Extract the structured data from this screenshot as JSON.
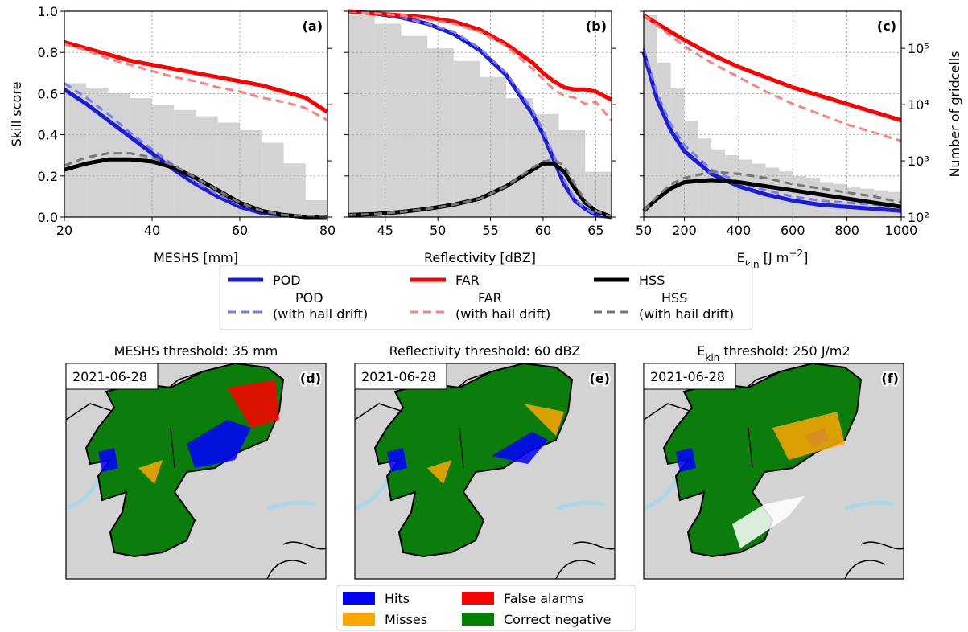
{
  "chart_data": [
    {
      "type": "line",
      "panel": "(a)",
      "ylabel": "Skill score",
      "xlabel": "MESHS [mm]",
      "xlim": [
        20,
        80
      ],
      "xticks": [
        20,
        40,
        60,
        80
      ],
      "ylim": [
        0,
        1
      ],
      "yticks": [
        {
          "value": 0,
          "label": "0.0"
        },
        {
          "value": 0.2,
          "label": "0.2"
        },
        {
          "value": 0.4,
          "label": "0.4"
        },
        {
          "value": 0.6,
          "label": "0.6"
        },
        {
          "value": 0.8,
          "label": "0.8"
        },
        {
          "value": 1,
          "label": "1.0"
        }
      ],
      "y2lim": [
        100,
        457000
      ],
      "y2log": true,
      "y2ticks": [
        100,
        1000,
        10000,
        100000
      ],
      "grid": true,
      "hist": {
        "color": "#d3d3d3",
        "bins": [
          20,
          25,
          30,
          35,
          40,
          45,
          50,
          55,
          60,
          65,
          70,
          75,
          80
        ],
        "counts": [
          24000,
          20000,
          16000,
          13000,
          10000,
          8000,
          6200,
          4800,
          3500,
          2100,
          900,
          200
        ]
      },
      "x": [
        20,
        25,
        30,
        35,
        40,
        45,
        50,
        55,
        60,
        65,
        70,
        75,
        80
      ],
      "series": [
        {
          "color": "#1c1cd6",
          "dashed": false,
          "values": [
            0.62,
            0.55,
            0.47,
            0.39,
            0.31,
            0.23,
            0.16,
            0.1,
            0.05,
            0.02,
            0.01,
            0,
            0
          ]
        },
        {
          "color": "#7b7bf0",
          "dashed": true,
          "values": [
            0.65,
            0.58,
            0.5,
            0.41,
            0.33,
            0.25,
            0.17,
            0.11,
            0.06,
            0.03,
            0.01,
            0.005,
            0
          ]
        },
        {
          "color": "#ff0000",
          "dashed": false,
          "values": [
            0.85,
            0.82,
            0.79,
            0.76,
            0.74,
            0.72,
            0.7,
            0.68,
            0.66,
            0.64,
            0.61,
            0.58,
            0.51
          ]
        },
        {
          "color": "#ff8080",
          "dashed": true,
          "values": [
            0.84,
            0.81,
            0.77,
            0.74,
            0.71,
            0.68,
            0.66,
            0.63,
            0.61,
            0.58,
            0.56,
            0.53,
            0.47
          ]
        },
        {
          "color": "#000000",
          "dashed": false,
          "values": [
            0.23,
            0.26,
            0.28,
            0.28,
            0.27,
            0.24,
            0.19,
            0.13,
            0.07,
            0.03,
            0.01,
            0,
            0
          ]
        },
        {
          "color": "#777777",
          "dashed": true,
          "values": [
            0.25,
            0.29,
            0.31,
            0.31,
            0.29,
            0.25,
            0.19,
            0.13,
            0.07,
            0.03,
            0.01,
            0.005,
            0
          ]
        }
      ]
    },
    {
      "type": "line",
      "panel": "(b)",
      "xlabel": "Reflectivity [dBZ]",
      "xlim": [
        41.5,
        66.5
      ],
      "xticks": [
        45,
        50,
        55,
        60,
        65
      ],
      "ylim": [
        0,
        1
      ],
      "yticks": [
        0,
        0.2,
        0.4,
        0.6,
        0.8,
        1
      ],
      "y2lim": [
        100,
        457000
      ],
      "y2log": true,
      "y2ticks": [
        100,
        1000,
        10000,
        100000
      ],
      "grid": true,
      "hist": {
        "color": "#d3d3d3",
        "bins": [
          41.5,
          44,
          46.5,
          49,
          51.5,
          54,
          56.5,
          59,
          61.5,
          64,
          66.5
        ],
        "counts": [
          390000,
          275000,
          166000,
          100000,
          60000,
          31000,
          13000,
          6800,
          3500,
          640
        ]
      },
      "x": [
        41.5,
        44,
        46.5,
        49,
        51.5,
        54,
        56.5,
        59,
        60,
        61,
        62,
        63,
        64,
        65,
        66.5
      ],
      "series": [
        {
          "color": "#1c1cd6",
          "dashed": false,
          "values": [
            1,
            0.99,
            0.97,
            0.94,
            0.89,
            0.81,
            0.69,
            0.5,
            0.4,
            0.28,
            0.16,
            0.08,
            0.04,
            0.01,
            0
          ]
        },
        {
          "color": "#7b7bf0",
          "dashed": true,
          "values": [
            1,
            0.99,
            0.97,
            0.94,
            0.9,
            0.82,
            0.7,
            0.52,
            0.42,
            0.3,
            0.18,
            0.09,
            0.04,
            0.015,
            0
          ]
        },
        {
          "color": "#ff0000",
          "dashed": false,
          "values": [
            1,
            0.99,
            0.98,
            0.97,
            0.95,
            0.91,
            0.84,
            0.75,
            0.7,
            0.66,
            0.63,
            0.62,
            0.62,
            0.61,
            0.57
          ]
        },
        {
          "color": "#ff8080",
          "dashed": true,
          "values": [
            1,
            0.99,
            0.98,
            0.96,
            0.94,
            0.9,
            0.83,
            0.72,
            0.67,
            0.62,
            0.59,
            0.58,
            0.55,
            0.56,
            0.47
          ]
        },
        {
          "color": "#000000",
          "dashed": false,
          "values": [
            0.01,
            0.015,
            0.025,
            0.04,
            0.06,
            0.09,
            0.15,
            0.23,
            0.26,
            0.26,
            0.22,
            0.14,
            0.07,
            0.03,
            0
          ]
        },
        {
          "color": "#777777",
          "dashed": true,
          "values": [
            0.01,
            0.015,
            0.025,
            0.04,
            0.06,
            0.09,
            0.15,
            0.24,
            0.27,
            0.28,
            0.25,
            0.16,
            0.08,
            0.03,
            0
          ]
        }
      ]
    },
    {
      "type": "line",
      "panel": "(c)",
      "xlabel": [
        "E",
        "kin",
        " [J m",
        "−2",
        "]"
      ],
      "y2label": "Number of gridcells",
      "xlim": [
        50,
        1000
      ],
      "xticks": [
        50,
        200,
        400,
        600,
        800,
        1000
      ],
      "ylim": [
        0,
        1
      ],
      "yticks": [
        0,
        0.2,
        0.4,
        0.6,
        0.8,
        1
      ],
      "y2lim": [
        100,
        457000
      ],
      "y2log": true,
      "y2ticks": [
        {
          "value": 100,
          "label": "10²"
        },
        {
          "value": 1000,
          "label": "10³"
        },
        {
          "value": 10000,
          "label": "10⁴"
        },
        {
          "value": 100000,
          "label": "10⁵"
        }
      ],
      "grid": true,
      "hist": {
        "color": "#d3d3d3",
        "bins": [
          50,
          100,
          150,
          200,
          250,
          300,
          350,
          400,
          450,
          500,
          550,
          600,
          650,
          700,
          750,
          800,
          850,
          900,
          950,
          1000
        ],
        "counts": [
          389000,
          56000,
          20000,
          5200,
          2500,
          1600,
          1260,
          1050,
          890,
          760,
          650,
          540,
          500,
          420,
          390,
          350,
          320,
          300,
          280
        ]
      },
      "x": [
        50,
        100,
        150,
        200,
        300,
        400,
        500,
        600,
        700,
        800,
        900,
        1000
      ],
      "series": [
        {
          "color": "#1c1cd6",
          "dashed": false,
          "values": [
            0.8,
            0.57,
            0.42,
            0.32,
            0.21,
            0.15,
            0.11,
            0.08,
            0.06,
            0.05,
            0.04,
            0.03
          ]
        },
        {
          "color": "#7b7bf0",
          "dashed": true,
          "values": [
            0.82,
            0.6,
            0.45,
            0.35,
            0.23,
            0.17,
            0.13,
            0.1,
            0.08,
            0.07,
            0.06,
            0.05
          ]
        },
        {
          "color": "#ff0000",
          "dashed": false,
          "values": [
            0.98,
            0.94,
            0.9,
            0.86,
            0.79,
            0.73,
            0.68,
            0.63,
            0.59,
            0.55,
            0.51,
            0.47
          ]
        },
        {
          "color": "#ff8080",
          "dashed": true,
          "values": [
            0.98,
            0.93,
            0.88,
            0.83,
            0.75,
            0.68,
            0.61,
            0.55,
            0.5,
            0.45,
            0.41,
            0.37
          ]
        },
        {
          "color": "#000000",
          "dashed": false,
          "values": [
            0.03,
            0.09,
            0.14,
            0.17,
            0.18,
            0.17,
            0.15,
            0.13,
            0.11,
            0.09,
            0.07,
            0.05
          ]
        },
        {
          "color": "#777777",
          "dashed": true,
          "values": [
            0.03,
            0.1,
            0.16,
            0.19,
            0.22,
            0.21,
            0.19,
            0.16,
            0.14,
            0.12,
            0.1,
            0.07
          ]
        }
      ]
    }
  ],
  "legend": [
    {
      "name": [
        "POD"
      ],
      "color": "#1c1cd6",
      "dashed": false
    },
    {
      "name": [
        "FAR"
      ],
      "color": "#ff0000",
      "dashed": false
    },
    {
      "name": [
        "HSS"
      ],
      "color": "#000000",
      "dashed": false
    },
    {
      "name": [
        "POD",
        "(with hail drift)"
      ],
      "color": "#7b7bf0",
      "dashed": true
    },
    {
      "name": [
        "FAR",
        "(with hail drift)"
      ],
      "color": "#ff8080",
      "dashed": true
    },
    {
      "name": [
        "HSS",
        "(with hail drift)"
      ],
      "color": "#777777",
      "dashed": true
    }
  ],
  "maps": {
    "panels": [
      {
        "title": [
          "MESHS threshold: 35 mm"
        ],
        "date": "2021-06-28",
        "label": "(d)"
      },
      {
        "title": [
          "Reflectivity threshold: 60 dBZ"
        ],
        "date": "2021-06-28",
        "label": "(e)"
      },
      {
        "title": [
          "E",
          "kin",
          " threshold: 250 J/m2"
        ],
        "date": "2021-06-28",
        "label": "(f)"
      }
    ],
    "legend": [
      {
        "name": "Hits",
        "color": "#0000ff"
      },
      {
        "name": "False alarms",
        "color": "#ff0000"
      },
      {
        "name": "Misses",
        "color": "#ffa500"
      },
      {
        "name": "Correct negative",
        "color": "#008000"
      }
    ]
  }
}
